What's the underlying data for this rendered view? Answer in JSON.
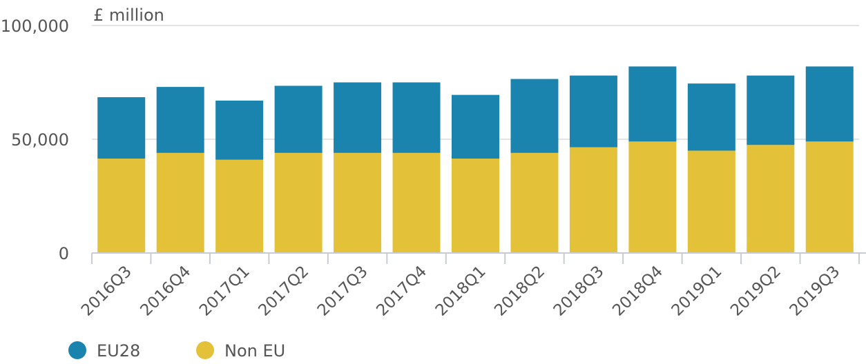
{
  "chart_data": {
    "type": "bar",
    "stacked": true,
    "title": "",
    "xlabel": "",
    "ylabel": "£ million",
    "ylim": [
      0,
      100000
    ],
    "yticks": [
      0,
      50000,
      100000
    ],
    "ytick_labels": [
      "0",
      "50,000",
      "100,000"
    ],
    "grid": true,
    "legend_position": "bottom-left",
    "categories": [
      "2016Q3",
      "2016Q4",
      "2017Q1",
      "2017Q2",
      "2017Q3",
      "2017Q4",
      "2018Q1",
      "2018Q2",
      "2018Q3",
      "2018Q4",
      "2019Q1",
      "2019Q2",
      "2019Q3"
    ],
    "series": [
      {
        "name": "Non EU",
        "color": "#e3c138",
        "values": [
          41500,
          44000,
          41000,
          44000,
          44000,
          44000,
          41500,
          44000,
          46500,
          49000,
          45000,
          47500,
          49000
        ]
      },
      {
        "name": "EU28",
        "color": "#1a83ae",
        "values": [
          27000,
          29000,
          26000,
          29500,
          31000,
          31000,
          28000,
          32500,
          31500,
          33000,
          29500,
          30500,
          33000
        ]
      }
    ],
    "legend": [
      {
        "label": "EU28",
        "color": "#1a83ae"
      },
      {
        "label": "Non EU",
        "color": "#e3c138"
      }
    ]
  }
}
